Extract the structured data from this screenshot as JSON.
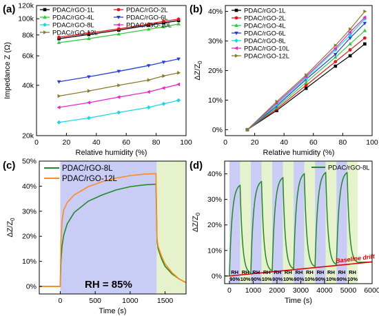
{
  "chart_data": [
    {
      "panel": "(a)",
      "type": "line",
      "xlabel": "Relative humidity (%)",
      "ylabel": "Impedance Z (Ω)",
      "y_scale": "log",
      "xlim": [
        0,
        100
      ],
      "ylim": [
        20000,
        120000
      ],
      "xticks": [
        0,
        20,
        40,
        60,
        80,
        100
      ],
      "yticks": [
        {
          "v": 20000,
          "l": "20k"
        },
        {
          "v": 40000,
          "l": "40k"
        },
        {
          "v": 60000,
          "l": "60k"
        },
        {
          "v": 80000,
          "l": "80k"
        },
        {
          "v": 100000,
          "l": "100k"
        },
        {
          "v": 120000,
          "l": "120k"
        }
      ],
      "x": [
        15,
        35,
        55,
        75,
        85,
        95
      ],
      "legend_columns": 2,
      "series": [
        {
          "name": "PDAC/rGO-1L",
          "color": "#000000",
          "values": [
            76000,
            80500,
            85500,
            91500,
            94500,
            97500
          ]
        },
        {
          "name": "PDAC/rGO-2L",
          "color": "#e8141b",
          "values": [
            77500,
            82000,
            87000,
            93000,
            96500,
            99500
          ]
        },
        {
          "name": "PDAC/rGO-4L",
          "color": "#2ecc3a",
          "values": [
            72000,
            76000,
            81000,
            86500,
            89500,
            93000
          ]
        },
        {
          "name": "PDAC/rGO-6L",
          "color": "#1f3fd8",
          "values": [
            42000,
            45000,
            48500,
            52500,
            55000,
            57500
          ]
        },
        {
          "name": "PDAC/rGO-8L",
          "color": "#17d7e6",
          "values": [
            24000,
            25500,
            27500,
            29500,
            31000,
            32500
          ]
        },
        {
          "name": "PDAC/rGO-10L",
          "color": "#ee22c8",
          "values": [
            29500,
            31500,
            34000,
            36500,
            38500,
            40500
          ]
        },
        {
          "name": "PDAC/rGO-12L",
          "color": "#8a7a25",
          "values": [
            34500,
            37000,
            40000,
            43000,
            45500,
            47500
          ]
        }
      ]
    },
    {
      "panel": "(b)",
      "type": "line",
      "xlabel": "Relative humidity (%)",
      "ylabel": "ΔZ/Z0",
      "xlim": [
        0,
        100
      ],
      "ylim": [
        -2,
        42
      ],
      "xticks": [
        0,
        20,
        40,
        60,
        80,
        100
      ],
      "yticks": [
        {
          "v": 0,
          "l": "0%"
        },
        {
          "v": 10,
          "l": "10%"
        },
        {
          "v": 20,
          "l": "20%"
        },
        {
          "v": 30,
          "l": "30%"
        },
        {
          "v": 40,
          "l": "40%"
        }
      ],
      "x": [
        15,
        35,
        55,
        75,
        85,
        95
      ],
      "series": [
        {
          "name": "PDAC/rGO-1L",
          "color": "#000000",
          "values": [
            0,
            6.5,
            14,
            21.5,
            25,
            29
          ]
        },
        {
          "name": "PDAC/rGO-2L",
          "color": "#e8141b",
          "values": [
            0,
            7,
            15,
            23,
            27,
            31
          ]
        },
        {
          "name": "PDAC/rGO-4L",
          "color": "#2ecc3a",
          "values": [
            0,
            7.5,
            16,
            24.5,
            29,
            33.5
          ]
        },
        {
          "name": "PDAC/rGO-6L",
          "color": "#1f3fd8",
          "values": [
            0,
            8,
            17,
            25.5,
            31,
            36
          ]
        },
        {
          "name": "PDAC/rGO-8L",
          "color": "#17d7e6",
          "values": [
            0,
            8.5,
            17.5,
            27,
            32,
            37.5
          ]
        },
        {
          "name": "PDAC/rGO-10L",
          "color": "#ee22c8",
          "values": [
            0,
            9,
            18,
            27.5,
            33,
            38
          ]
        },
        {
          "name": "PDAC/rGO-12L",
          "color": "#8a7a25",
          "values": [
            0,
            9.5,
            18.5,
            28.5,
            34,
            40
          ]
        }
      ]
    },
    {
      "panel": "(c)",
      "type": "line",
      "xlabel": "Time (s)",
      "ylabel": "ΔZ/Z0",
      "xlim": [
        -300,
        1800
      ],
      "ylim": [
        -3,
        50
      ],
      "xticks": [
        0,
        500,
        1000,
        1500
      ],
      "yticks": [
        {
          "v": 0,
          "l": "0%"
        },
        {
          "v": 10,
          "l": "10%"
        },
        {
          "v": 20,
          "l": "20%"
        },
        {
          "v": 30,
          "l": "30%"
        },
        {
          "v": 40,
          "l": "40%"
        },
        {
          "v": 50,
          "l": "50%"
        }
      ],
      "regions": [
        {
          "from": 0,
          "to": 1380,
          "color": "#c9ccf4"
        },
        {
          "from": 1380,
          "to": 1800,
          "color": "#e5f2cc"
        }
      ],
      "annotation": "RH = 85%",
      "series": [
        {
          "name": "PDAC/rGO-8L",
          "color": "#1f8a25",
          "x": [
            -300,
            -5,
            0,
            10,
            25,
            50,
            100,
            200,
            400,
            600,
            800,
            1000,
            1200,
            1370,
            1385,
            1400,
            1450,
            1500,
            1600,
            1700,
            1800
          ],
          "values": [
            0,
            0,
            0,
            10,
            16,
            20.5,
            25,
            29.5,
            34,
            36.5,
            38.5,
            39.8,
            40.5,
            40.8,
            18,
            15,
            11,
            8,
            5,
            3,
            1.5
          ]
        },
        {
          "name": "PDAC/rGO-12L",
          "color": "#ff8a1e",
          "x": [
            -300,
            -5,
            0,
            10,
            25,
            50,
            100,
            200,
            400,
            600,
            800,
            1000,
            1200,
            1370,
            1385,
            1400,
            1450,
            1500,
            1600,
            1700,
            1800
          ],
          "values": [
            0,
            0,
            0,
            18,
            26,
            30.5,
            33.5,
            36.5,
            39.8,
            41.8,
            43.2,
            44.2,
            44.8,
            45,
            19,
            16,
            12,
            9,
            5.5,
            3,
            1.5
          ]
        }
      ]
    },
    {
      "panel": "(d)",
      "type": "line",
      "xlabel": "Time (s)",
      "ylabel": "ΔZ/Z0",
      "xlim": [
        -200,
        6000
      ],
      "ylim": [
        -3,
        45
      ],
      "xticks": [
        0,
        1000,
        2000,
        3000,
        4000,
        5000,
        6000
      ],
      "yticks": [
        {
          "v": 0,
          "l": "0%"
        },
        {
          "v": 10,
          "l": "10%"
        },
        {
          "v": 20,
          "l": "20%"
        },
        {
          "v": 30,
          "l": "30%"
        },
        {
          "v": 40,
          "l": "40%"
        }
      ],
      "cycle_starts": [
        0,
        900,
        1800,
        2700,
        3600,
        4500,
        5400
      ],
      "rise_duration": 450,
      "peaks": [
        35.5,
        37,
        38.5,
        40,
        40.5,
        40.5
      ],
      "baseline": {
        "start": 0,
        "end": 5.5
      },
      "cycle_labels": [
        [
          "RH",
          "90%"
        ],
        [
          "RH",
          "10%"
        ],
        [
          "RH",
          "90%"
        ],
        [
          "RH",
          "10%"
        ],
        [
          "RH",
          "90%"
        ],
        [
          "RH",
          "10%"
        ],
        [
          "RH",
          "90%"
        ],
        [
          "RH",
          "10%"
        ],
        [
          "RH",
          "90%"
        ],
        [
          "RH",
          "10%"
        ],
        [
          "RH",
          "90%"
        ],
        [
          "RH",
          "10%"
        ]
      ],
      "annotation": "Baseline drift",
      "series": [
        {
          "name": "PDAC/rGO-8L",
          "color": "#1f8a25"
        }
      ]
    }
  ]
}
